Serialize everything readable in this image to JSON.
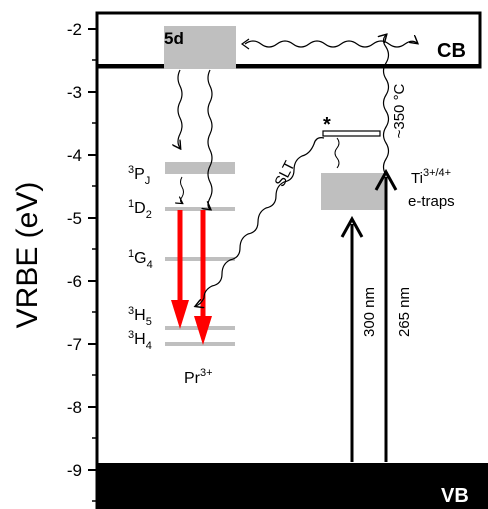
{
  "axis": {
    "label": "VRBE (eV)",
    "ticks": [
      "-2",
      "-3",
      "-4",
      "-5",
      "-6",
      "-7",
      "-8",
      "-9"
    ]
  },
  "bands": {
    "conduction": "CB",
    "valence": "VB"
  },
  "ion": {
    "name": "Pr",
    "charge": "3+"
  },
  "levels": {
    "five_d": "5d",
    "p": {
      "base": "P",
      "sup": "3",
      "sub": "J"
    },
    "d": {
      "base": "D",
      "sup": "1",
      "sub": "2"
    },
    "g": {
      "base": "G",
      "sup": "1",
      "sub": "4"
    },
    "h5": {
      "base": "H",
      "sup": "3",
      "sub": "5"
    },
    "h4": {
      "base": "H",
      "sup": "3",
      "sub": "4"
    }
  },
  "ti": {
    "base": "Ti",
    "sup": "3+/4+",
    "line2": "e-traps"
  },
  "labels": {
    "slt": "SLT",
    "star": "*",
    "temperature": "~350 °C",
    "nm300": "300 nm",
    "nm265": "265 nm"
  },
  "colors": {
    "emission_arrow": "#ff0000",
    "level_gray": "#bfbfbf",
    "band_black": "#000000"
  }
}
